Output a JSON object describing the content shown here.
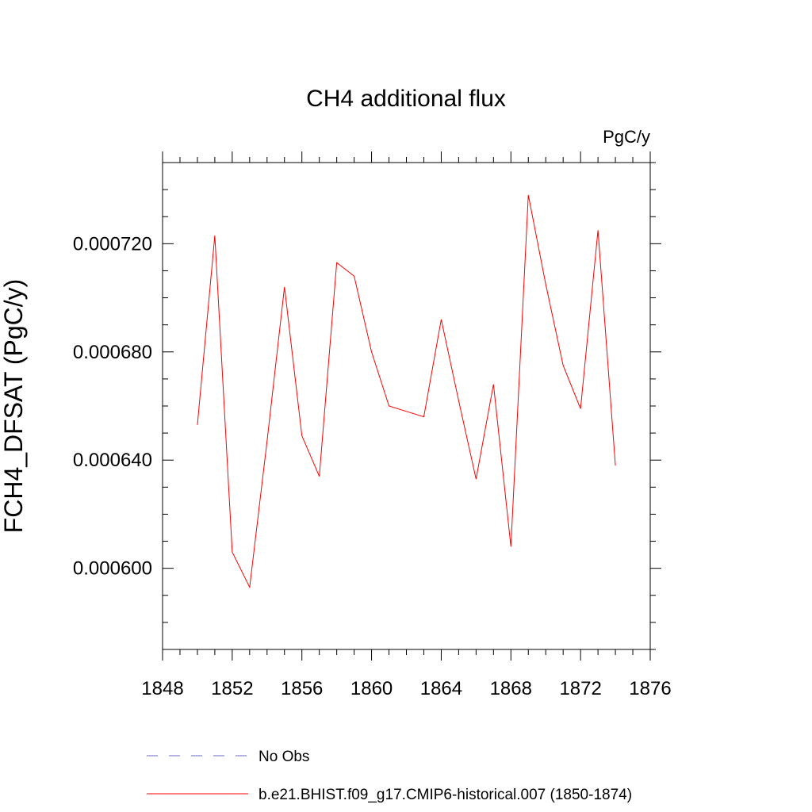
{
  "chart_data": {
    "type": "line",
    "title": "CH4 additional flux",
    "units_label": "PgC/y",
    "xlabel": "",
    "ylabel": "FCH4_DFSAT  (PgC/y)",
    "xlim": [
      1848,
      1876
    ],
    "ylim": [
      0.00057,
      0.00075
    ],
    "x_ticks": [
      1848,
      1852,
      1856,
      1860,
      1864,
      1868,
      1872,
      1876
    ],
    "x_tick_labels": [
      "1848",
      "1852",
      "1856",
      "1860",
      "1864",
      "1868",
      "1872",
      "1876"
    ],
    "y_ticks": [
      0.0006,
      0.00064,
      0.00068,
      0.00072
    ],
    "y_tick_labels": [
      "0.000600",
      "0.000640",
      "0.000680",
      "0.000720"
    ],
    "grid": false,
    "series": [
      {
        "name": "b.e21.BHIST.f09_g17.CMIP6-historical.007 (1850-1874)",
        "color": "#ff0000",
        "x": [
          1850,
          1851,
          1852,
          1853,
          1854,
          1855,
          1856,
          1857,
          1858,
          1859,
          1860,
          1861,
          1862,
          1863,
          1864,
          1865,
          1866,
          1867,
          1868,
          1869,
          1870,
          1871,
          1872,
          1873,
          1874
        ],
        "y": [
          0.000653,
          0.000723,
          0.000606,
          0.000593,
          0.000647,
          0.000704,
          0.000649,
          0.000634,
          0.000713,
          0.000708,
          0.00068,
          0.00066,
          0.000658,
          0.000656,
          0.000692,
          0.000662,
          0.000633,
          0.000668,
          0.000608,
          0.000738,
          0.000705,
          0.000675,
          0.000659,
          0.000725,
          0.000638
        ]
      }
    ],
    "legend": {
      "position": "bottom",
      "entries": [
        {
          "label": "No Obs",
          "color": "#6666cc",
          "style": "dashed"
        },
        {
          "label": "b.e21.BHIST.f09_g17.CMIP6-historical.007 (1850-1874)",
          "color": "#ff0000",
          "style": "solid"
        }
      ]
    }
  }
}
